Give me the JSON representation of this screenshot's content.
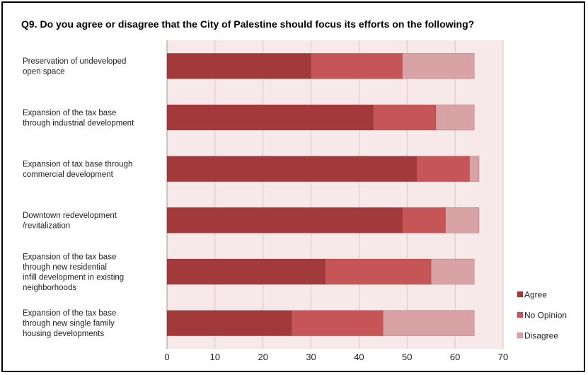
{
  "colors": {
    "agree": "#a23a3c",
    "no_opinion": "#c65558",
    "disagree": "#d9a3a6",
    "plot_bg": "#f7e8ea",
    "grid": "#d6c6c8"
  },
  "chart_data": {
    "type": "bar",
    "orientation": "horizontal",
    "stacked": true,
    "title": "Q9. Do you agree or disagree that the City of Palestine should focus its efforts on the following?",
    "xlim": [
      0,
      70
    ],
    "xticks": [
      "0",
      "10",
      "20",
      "30",
      "40",
      "50",
      "60",
      "70"
    ],
    "grid": true,
    "legend_position": "right-bottom",
    "categories": [
      [
        "Preservation of undeveloped",
        "open space"
      ],
      [
        "Expansion of the tax base",
        "through industrial development"
      ],
      [
        "Expansion of tax base through",
        "commercial development"
      ],
      [
        "Downtown redevelopment",
        "/revitalization"
      ],
      [
        "Expansion of the tax base",
        "through new residential",
        "infill development in existing",
        "neighborhoods"
      ],
      [
        "Expansion of the tax base",
        "through new single family",
        "housing developments"
      ]
    ],
    "series": [
      {
        "name": "Agree",
        "values": [
          30,
          43,
          52,
          49,
          33,
          26
        ]
      },
      {
        "name": "No Opinion",
        "values": [
          19,
          13,
          11,
          9,
          22,
          19
        ]
      },
      {
        "name": "Disagree",
        "values": [
          15,
          8,
          2,
          7,
          9,
          19
        ]
      }
    ]
  }
}
